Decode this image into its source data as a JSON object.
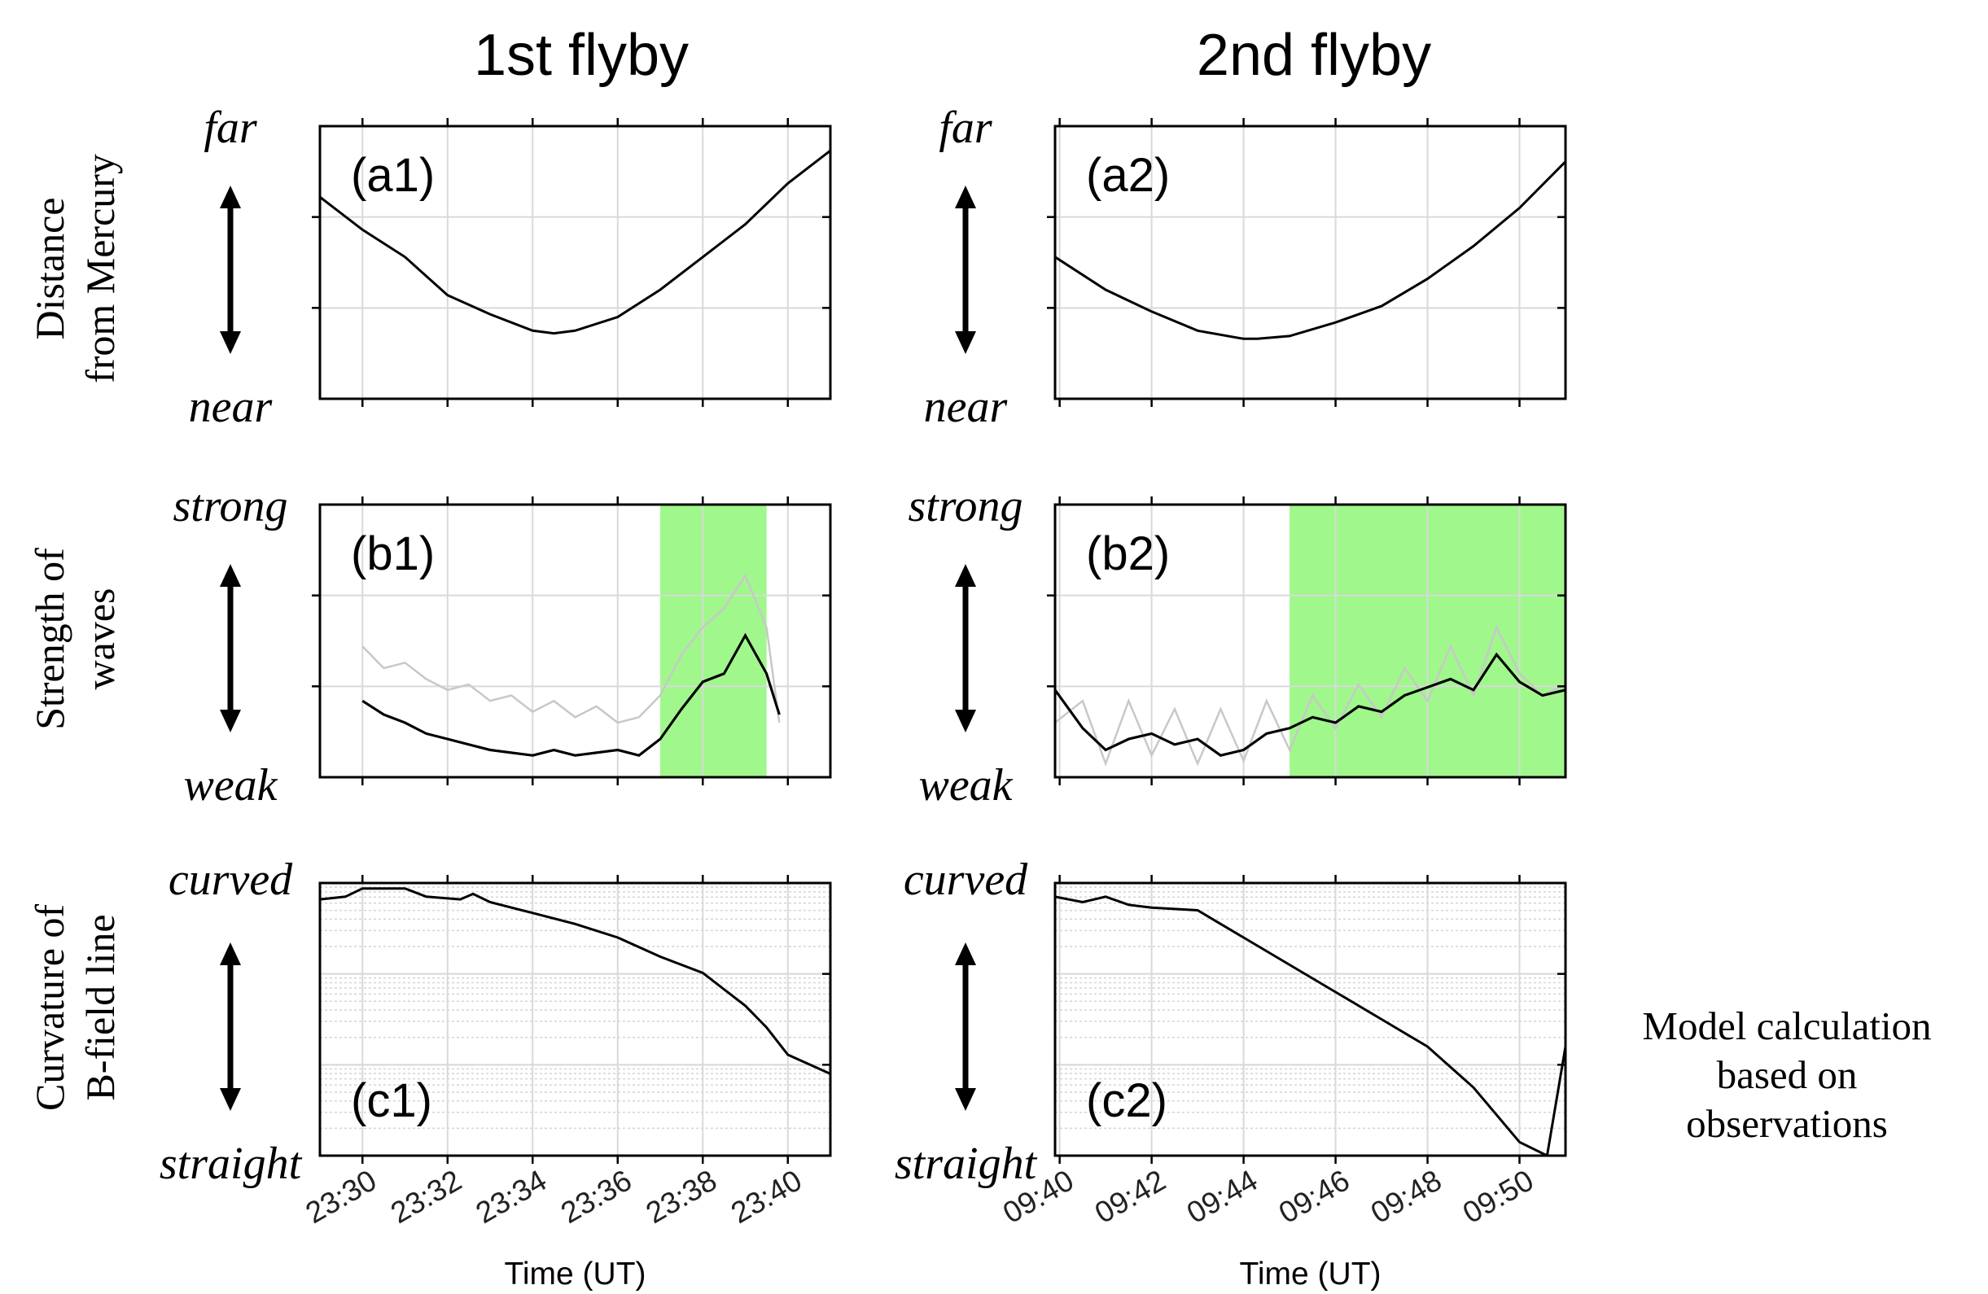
{
  "columns": [
    {
      "title": "1st flyby",
      "xlabel": "Time (UT)",
      "xticks": [
        "23:30",
        "23:32",
        "23:34",
        "23:36",
        "23:38",
        "23:40"
      ]
    },
    {
      "title": "2nd flyby",
      "xlabel": "Time (UT)",
      "xticks": [
        "09:40",
        "09:42",
        "09:44",
        "09:46",
        "09:48",
        "09:50"
      ]
    }
  ],
  "rows": [
    {
      "ylabel_line1": "Distance",
      "ylabel_line2": "from Mercury",
      "top": "far",
      "bottom": "near"
    },
    {
      "ylabel_line1": "Strength of",
      "ylabel_line2": "waves",
      "top": "strong",
      "bottom": "weak"
    },
    {
      "ylabel_line1": "Curvature of",
      "ylabel_line2": "B-field line",
      "top": "curved",
      "bottom": "straight"
    }
  ],
  "note": {
    "line1": "Model calculation",
    "line2": "based on",
    "line3": "observations"
  },
  "colors": {
    "highlight": "#a0f78c",
    "raw": "#c8c8c8",
    "smooth": "#000000",
    "grid": "#d9d9d9"
  },
  "chart_data": [
    {
      "panel": "(a1)",
      "type": "line",
      "xlim": [
        "23:29",
        "23:41"
      ],
      "ylim": [
        0,
        1
      ],
      "grid": true,
      "series": [
        {
          "x": [
            "23:29",
            "23:30",
            "23:31",
            "23:32",
            "23:33",
            "23:34",
            "23:34.5",
            "23:35",
            "23:36",
            "23:37",
            "23:38",
            "23:39",
            "23:40",
            "23:41"
          ],
          "values": [
            0.74,
            0.62,
            0.52,
            0.38,
            0.31,
            0.25,
            0.24,
            0.25,
            0.3,
            0.4,
            0.52,
            0.64,
            0.79,
            0.91
          ]
        }
      ]
    },
    {
      "panel": "(a2)",
      "type": "line",
      "xlim": [
        "09:39.9",
        "09:51"
      ],
      "ylim": [
        0,
        1
      ],
      "grid": true,
      "series": [
        {
          "x": [
            "09:39.9",
            "09:41",
            "09:42",
            "09:43",
            "09:44",
            "09:44.3",
            "09:45",
            "09:46",
            "09:47",
            "09:48",
            "09:49",
            "09:50",
            "09:51"
          ],
          "values": [
            0.52,
            0.4,
            0.32,
            0.25,
            0.22,
            0.22,
            0.23,
            0.28,
            0.34,
            0.44,
            0.56,
            0.7,
            0.87
          ]
        }
      ]
    },
    {
      "panel": "(b1)",
      "type": "line",
      "xlim": [
        "23:29",
        "23:41"
      ],
      "ylim": [
        0,
        1
      ],
      "grid": true,
      "highlight_span": [
        "23:37",
        "23:39.5"
      ],
      "series": [
        {
          "x": [
            "23:30",
            "23:30.5",
            "23:31",
            "23:31.5",
            "23:32",
            "23:32.5",
            "23:33",
            "23:33.5",
            "23:34",
            "23:34.5",
            "23:35",
            "23:35.5",
            "23:36",
            "23:36.5",
            "23:37",
            "23:37.5",
            "23:38",
            "23:38.5",
            "23:39",
            "23:39.5",
            "23:39.8"
          ],
          "values": [
            0.28,
            0.23,
            0.2,
            0.16,
            0.14,
            0.12,
            0.1,
            0.09,
            0.08,
            0.1,
            0.08,
            0.09,
            0.1,
            0.08,
            0.14,
            0.25,
            0.35,
            0.38,
            0.52,
            0.38,
            0.23
          ]
        },
        {
          "x": [
            "23:30",
            "23:30.5",
            "23:31",
            "23:31.5",
            "23:32",
            "23:32.5",
            "23:33",
            "23:33.5",
            "23:34",
            "23:34.5",
            "23:35",
            "23:35.5",
            "23:36",
            "23:36.5",
            "23:37",
            "23:37.5",
            "23:38",
            "23:38.5",
            "23:39",
            "23:39.5",
            "23:39.8"
          ],
          "values": [
            0.48,
            0.4,
            0.42,
            0.36,
            0.32,
            0.34,
            0.28,
            0.3,
            0.24,
            0.28,
            0.22,
            0.26,
            0.2,
            0.22,
            0.3,
            0.45,
            0.55,
            0.62,
            0.74,
            0.55,
            0.2
          ]
        }
      ]
    },
    {
      "panel": "(b2)",
      "type": "line",
      "xlim": [
        "09:39.9",
        "09:51"
      ],
      "ylim": [
        0,
        1
      ],
      "grid": true,
      "highlight_span": [
        "09:45",
        "09:51"
      ],
      "series": [
        {
          "x": [
            "09:39.9",
            "09:40.5",
            "09:41",
            "09:41.5",
            "09:42",
            "09:42.5",
            "09:43",
            "09:43.5",
            "09:44",
            "09:44.5",
            "09:45",
            "09:45.5",
            "09:46",
            "09:46.5",
            "09:47",
            "09:47.5",
            "09:48",
            "09:48.5",
            "09:49",
            "09:49.5",
            "09:50",
            "09:50.5",
            "09:51"
          ],
          "values": [
            0.32,
            0.18,
            0.1,
            0.14,
            0.16,
            0.12,
            0.14,
            0.08,
            0.1,
            0.16,
            0.18,
            0.22,
            0.2,
            0.26,
            0.24,
            0.3,
            0.33,
            0.36,
            0.32,
            0.45,
            0.35,
            0.3,
            0.32
          ]
        },
        {
          "x": [
            "09:39.9",
            "09:40.5",
            "09:41",
            "09:41.5",
            "09:42",
            "09:42.5",
            "09:43",
            "09:43.5",
            "09:44",
            "09:44.5",
            "09:45",
            "09:45.5",
            "09:46",
            "09:46.5",
            "09:47",
            "09:47.5",
            "09:48",
            "09:48.5",
            "09:49",
            "09:49.5",
            "09:50",
            "09:50.5",
            "09:51"
          ],
          "values": [
            0.2,
            0.28,
            0.05,
            0.28,
            0.08,
            0.25,
            0.05,
            0.25,
            0.06,
            0.28,
            0.1,
            0.3,
            0.18,
            0.34,
            0.22,
            0.4,
            0.28,
            0.48,
            0.3,
            0.55,
            0.38,
            0.3,
            0.34
          ]
        }
      ]
    },
    {
      "panel": "(c1)",
      "type": "line",
      "xlim": [
        "23:29",
        "23:41"
      ],
      "ylim": [
        0,
        1
      ],
      "ylog": true,
      "grid": true,
      "series": [
        {
          "x": [
            "23:29",
            "23:29.6",
            "23:30",
            "23:31",
            "23:31.5",
            "23:32.3",
            "23:32.6",
            "23:33",
            "23:34",
            "23:35",
            "23:36",
            "23:37",
            "23:38",
            "23:39",
            "23:39.5",
            "23:40",
            "23:41"
          ],
          "values": [
            0.94,
            0.95,
            0.98,
            0.98,
            0.95,
            0.94,
            0.96,
            0.93,
            0.89,
            0.85,
            0.8,
            0.73,
            0.67,
            0.55,
            0.47,
            0.37,
            0.3
          ]
        }
      ]
    },
    {
      "panel": "(c2)",
      "type": "line",
      "xlim": [
        "09:39.9",
        "09:51"
      ],
      "ylim": [
        0,
        1
      ],
      "ylog": true,
      "grid": true,
      "series": [
        {
          "x": [
            "09:39.9",
            "09:40.5",
            "09:41",
            "09:41.5",
            "09:42",
            "09:43",
            "09:43.5",
            "09:44",
            "09:45",
            "09:46",
            "09:47",
            "09:48",
            "09:49",
            "09:50",
            "09:50.6",
            "09:51"
          ],
          "values": [
            0.95,
            0.93,
            0.95,
            0.92,
            0.91,
            0.9,
            0.85,
            0.8,
            0.7,
            0.6,
            0.5,
            0.4,
            0.25,
            0.05,
            0.0,
            0.4
          ]
        }
      ]
    }
  ]
}
